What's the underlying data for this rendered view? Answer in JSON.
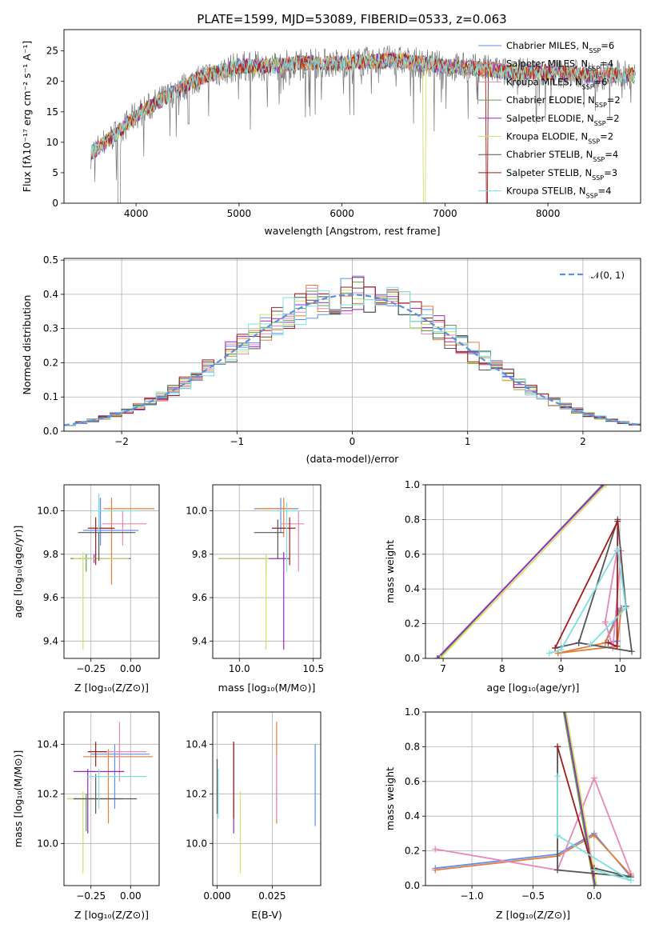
{
  "colors": {
    "chabrier_miles": "#5b8ff9",
    "salpeter_miles": "#e67e3a",
    "kroupa_miles": "#e887b8",
    "chabrier_elodie": "#59a14f",
    "salpeter_elodie": "#9b27c4",
    "kroupa_elodie": "#cfe26a",
    "chabrier_stelib": "#555555",
    "salpeter_stelib": "#a01c1c",
    "kroupa_stelib": "#7ee0e0",
    "gaussian": "#5b8fe0",
    "spectrum_data": "#777777"
  },
  "chart_data": [
    {
      "type": "line",
      "id": "spectrum",
      "title": "PLATE=1599, MJD=53089, FIBERID=0533, z=0.063",
      "xlabel": "wavelength [Angstrom, rest frame]",
      "ylabel": "Flux [fλ10⁻¹⁷ erg cm⁻² s⁻¹ A⁻¹]",
      "xlim": [
        3300,
        8900
      ],
      "ylim": [
        0,
        28.5
      ],
      "xticks": [
        "4000",
        "5000",
        "6000",
        "7000",
        "8000"
      ],
      "yticks": [
        "0",
        "5",
        "10",
        "15",
        "20",
        "25"
      ],
      "legend_position": "right",
      "legend": [
        "Chabrier MILES, N_SSP=6",
        "Salpeter MILES, N_SSP=4",
        "Kroupa MILES, N_SSP=6",
        "Chabrier ELODIE, N_SSP=2",
        "Salpeter ELODIE, N_SSP=2",
        "Kroupa ELODIE, N_SSP=2",
        "Chabrier STELIB, N_SSP=4",
        "Salpeter STELIB, N_SSP=3",
        "Kroupa STELIB, N_SSP=4"
      ],
      "continuum_x": [
        3550,
        3700,
        3850,
        4000,
        4200,
        4400,
        4600,
        4800,
        5000,
        5300,
        5600,
        6000,
        6500,
        7000,
        7400,
        7600,
        8000,
        8400,
        8850
      ],
      "continuum_y": [
        8,
        10,
        12,
        14.5,
        16.5,
        18.5,
        20.5,
        21.5,
        22.5,
        22.5,
        23,
        23,
        23.5,
        22.5,
        22,
        21.5,
        21.5,
        21,
        21
      ]
    },
    {
      "type": "line",
      "id": "residuals",
      "xlabel": "(data-model)/error",
      "ylabel": "Normed distribution",
      "xlim": [
        -2.5,
        2.5
      ],
      "ylim": [
        0,
        0.505
      ],
      "xticks": [
        "−2",
        "−1",
        "0",
        "1",
        "2"
      ],
      "yticks": [
        "0.0",
        "0.1",
        "0.2",
        "0.3",
        "0.4",
        "0.5"
      ],
      "legend_label": "𝒩(0, 1)",
      "legend_position": "top-right",
      "grid": true
    },
    {
      "type": "scatter",
      "id": "age_vs_z",
      "xlabel": "Z [log₁₀(Z/Z⊙)]",
      "ylabel": "age  [log₁₀(age/yr)]",
      "xlim": [
        -0.42,
        0.18
      ],
      "ylim": [
        9.32,
        10.12
      ],
      "xticks": [
        "−0.25",
        "0.00"
      ],
      "yticks": [
        "9.4",
        "9.6",
        "9.8",
        "10.0"
      ],
      "grid": true
    },
    {
      "type": "scatter",
      "id": "age_vs_mass",
      "xlabel": "mass [log₁₀(M/M⊙)]",
      "xlim": [
        9.82,
        10.55
      ],
      "ylim": [
        9.32,
        10.12
      ],
      "xticks": [
        "10.0",
        "10.5"
      ],
      "yticks": [
        "9.4",
        "9.6",
        "9.8",
        "10.0"
      ],
      "grid": true
    },
    {
      "type": "line",
      "id": "massweight_vs_age",
      "xlabel": "age  [log₁₀(age/yr)]",
      "ylabel": "mass weight",
      "xlim": [
        6.7,
        10.35
      ],
      "ylim": [
        0,
        1.0
      ],
      "xticks": [
        "7",
        "8",
        "9",
        "10"
      ],
      "yticks": [
        "0.0",
        "0.2",
        "0.4",
        "0.6",
        "0.8",
        "1.0"
      ],
      "grid": true
    },
    {
      "type": "scatter",
      "id": "mass_vs_z",
      "xlabel": "Z [log₁₀(Z/Z⊙)]",
      "ylabel": "mass [log₁₀(M/M⊙)]",
      "xlim": [
        -0.42,
        0.18
      ],
      "ylim": [
        9.83,
        10.53
      ],
      "xticks": [
        "−0.25",
        "0.00"
      ],
      "yticks": [
        "10.0",
        "10.2",
        "10.4"
      ],
      "grid": true
    },
    {
      "type": "scatter",
      "id": "mass_vs_ebv",
      "xlabel": "E(B-V)",
      "xlim": [
        -0.002,
        0.047
      ],
      "ylim": [
        9.83,
        10.53
      ],
      "xticks": [
        "0.000",
        "0.025"
      ],
      "yticks": [
        "10.0",
        "10.2",
        "10.4"
      ],
      "grid": true
    },
    {
      "type": "line",
      "id": "massweight_vs_z",
      "xlabel": "Z [log₁₀(Z/Z⊙)]",
      "ylabel": "mass weight",
      "xlim": [
        -1.38,
        0.38
      ],
      "ylim": [
        0,
        1.0
      ],
      "xticks": [
        "−1.0",
        "−0.5",
        "0.0"
      ],
      "yticks": [
        "0.0",
        "0.2",
        "0.4",
        "0.6",
        "0.8",
        "1.0"
      ],
      "grid": true
    }
  ]
}
